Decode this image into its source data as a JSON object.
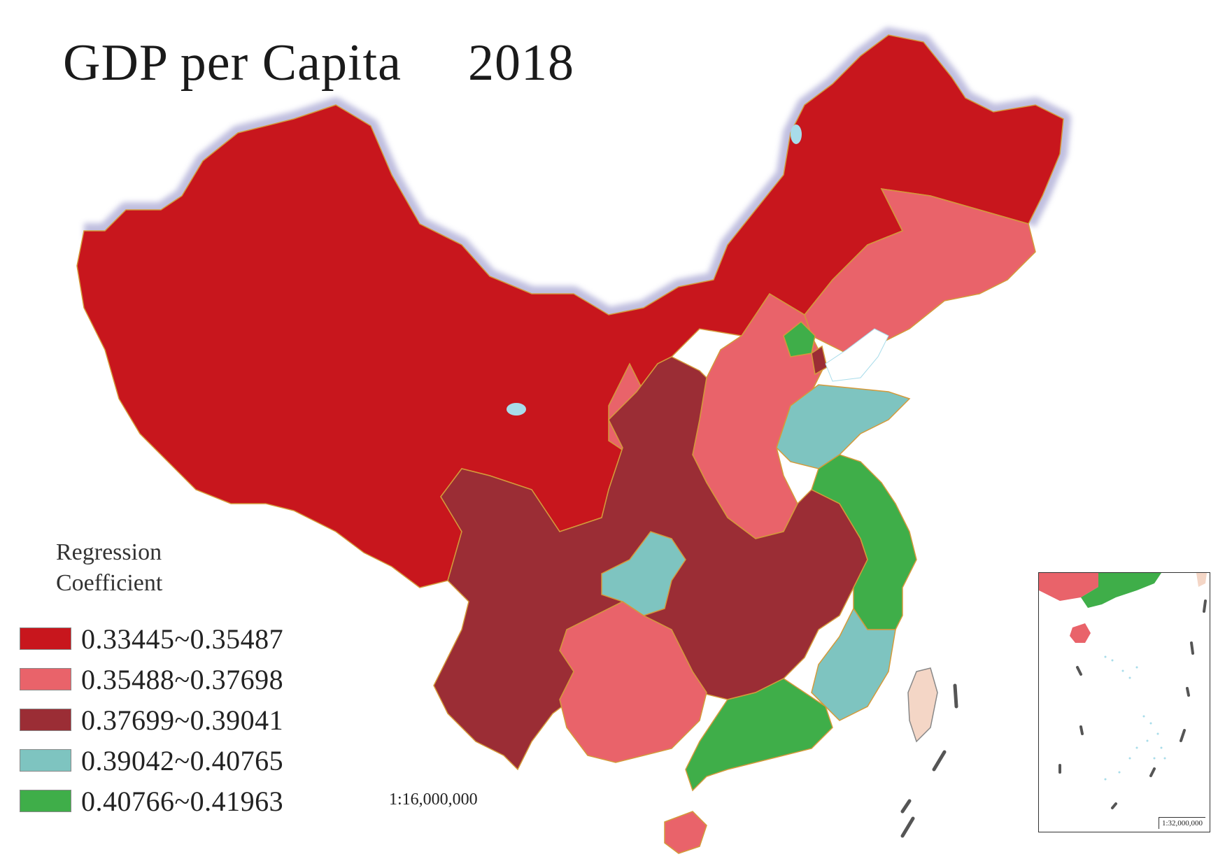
{
  "title": {
    "main": "GDP per Capita",
    "year": "2018"
  },
  "legend": {
    "title_line1": "Regression",
    "title_line2": "Coefficient",
    "items": [
      {
        "label": "0.33445~0.35487",
        "color": "#c8161d"
      },
      {
        "label": "0.35488~0.37698",
        "color": "#e9636a"
      },
      {
        "label": "0.37699~0.39041",
        "color": "#9b2d35"
      },
      {
        "label": "0.39042~0.40765",
        "color": "#7ec4c0"
      },
      {
        "label": "0.40766~0.41963",
        "color": "#3fae49"
      }
    ]
  },
  "scale_main": "1:16,000,000",
  "scale_inset": "1:32,000,000",
  "colors": {
    "border_halo": "#b9b8dc",
    "water": "#a8dcea",
    "taiwan": "#f4d6c6",
    "boundary": "#d49a3a"
  }
}
